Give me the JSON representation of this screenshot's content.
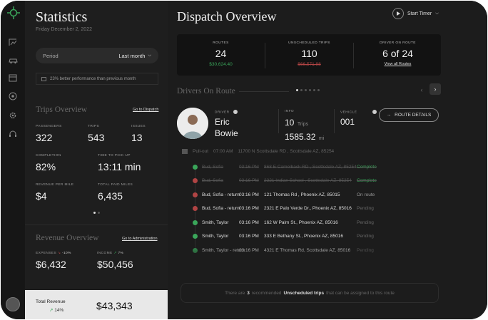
{
  "sidebar": {
    "title": "Statistics",
    "date": "Friday December 2, 2022",
    "period_label": "Period",
    "period_value": "Last month",
    "performance_note": "23% better performance than previous month",
    "trips": {
      "heading": "Trips Overview",
      "link": "Go to Dispatch",
      "passengers_label": "PASSENGERS",
      "passengers_value": "322",
      "trips_label": "TRIPS",
      "trips_value": "543",
      "issues_label": "ISSUES",
      "issues_value": "13",
      "completion_label": "COMPLETION",
      "completion_value": "82%",
      "pickup_label": "TIME TO PICK UP",
      "pickup_value": "13:11 min",
      "revpm_label": "REVENUE PER MILE",
      "revpm_value": "$4",
      "paidmiles_label": "TOTAL PAID MILES",
      "paidmiles_value": "6,435"
    },
    "revenue": {
      "heading": "Revenue Overview",
      "link": "Go to Administration",
      "expenses_label": "EXPENSES",
      "expenses_change": "-10%",
      "expenses_value": "$6,432",
      "income_label": "INCOME",
      "income_change": "7%",
      "income_value": "$50,456"
    },
    "total": {
      "label": "Total Revenue",
      "change": "14%",
      "value": "$43,343"
    }
  },
  "main": {
    "title": "Dispatch Overview",
    "timer_label": "Start Timer",
    "summary": {
      "routes_label": "ROUTES",
      "routes_value": "24",
      "routes_sub": "$30,624.40",
      "unsched_label": "UNSCHEDULED TRIPS",
      "unsched_value": "110",
      "unsched_sub": "$66,571.98",
      "onroute_label": "DRIVER ON ROUTE",
      "onroute_value": "6 of 24",
      "onroute_link": "View all Routes"
    },
    "drivers_heading": "Drivers On Route",
    "driver": {
      "label": "DRIVER",
      "first": "Eric",
      "last": "Bowie",
      "info_label": "INFO",
      "trips_num": "10",
      "trips_unit": "Trips",
      "miles_num": "1585.32",
      "miles_unit": "mi",
      "vehicle_label": "VEHICLE",
      "vehicle_value": "001",
      "button": "ROUTE DETAILS"
    },
    "pullout": {
      "label": "Pull-out",
      "time": "07:00 AM",
      "address": "11700 N Scottsdale RD , Scottsdale AZ, 85254"
    },
    "stops": [
      {
        "name": "Bud, Sofia",
        "time": "03:16 PM",
        "address": "868 E Camelback RD , Scottsdale AZ, 85254",
        "status": "Complete",
        "color": "#3aa65a",
        "status_color": "#3aa65a",
        "done": true
      },
      {
        "name": "Bud, Sofia",
        "time": "03:16 PM",
        "address": "2321 Indian School , Scottsdale AZ, 85254",
        "status": "Complete",
        "color": "#b04444",
        "status_color": "#3aa65a",
        "done": true
      },
      {
        "name": "Bud, Sofia - return",
        "time": "03:16 PM",
        "address": "121 Thomas Rd , Phoenix AZ, 85015",
        "status": "On route",
        "color": "#b04444",
        "status_color": "#999999",
        "done": false
      },
      {
        "name": "Bud, Sofia - return",
        "time": "03:16 PM",
        "address": "2321 E Palo Verde Dr., Phoenix AZ, 85016",
        "status": "Pending",
        "color": "#b04444",
        "status_color": "#666666",
        "done": false
      },
      {
        "name": "Smith, Taylor",
        "time": "03:16 PM",
        "address": "162 W Palm St., Phoenix AZ, 85016",
        "status": "Pending",
        "color": "#3aa65a",
        "status_color": "#666666",
        "done": false
      },
      {
        "name": "Smith, Taylor",
        "time": "03:16 PM",
        "address": "333 E Bethany St., Phoenix AZ, 85016",
        "status": "Pending",
        "color": "#3aa65a",
        "status_color": "#666666",
        "done": false
      },
      {
        "name": "Smith, Taylor - return",
        "time": "03:16 PM",
        "address": "4321 E Thomas Rd, Scottsdale AZ, 85016",
        "status": "Pending",
        "color": "#3aa65a",
        "status_color": "#666666",
        "done": false
      }
    ],
    "recommendation": {
      "prefix": "There are",
      "count": "3",
      "mid": "recommended",
      "bold": "Unscheduled trips",
      "suffix": "that can be assigned to this route"
    }
  },
  "colors": {
    "green": "#3aa65a",
    "red": "#b04444",
    "accent": "#c8a24a"
  }
}
